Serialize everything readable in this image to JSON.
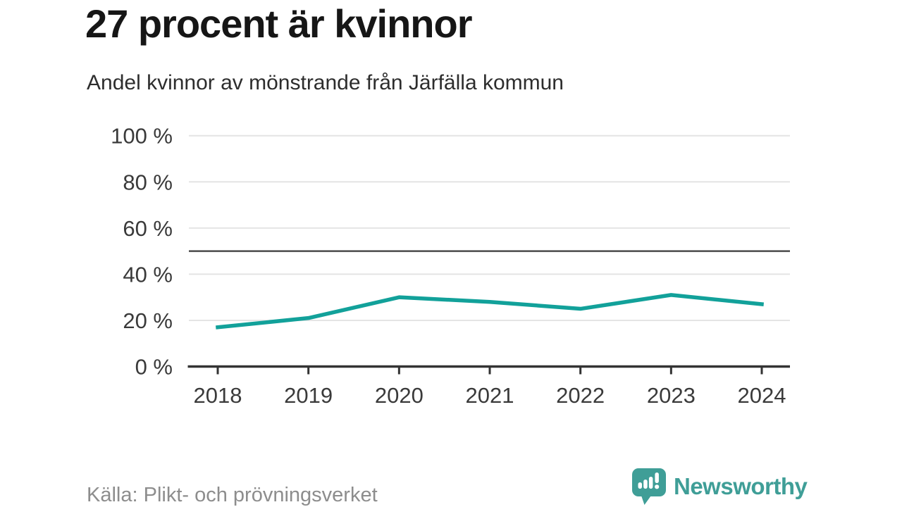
{
  "header": {
    "title": "27 procent är kvinnor",
    "subtitle": "Andel kvinnor av mönstrande från Järfälla kommun"
  },
  "chart_data": {
    "type": "line",
    "title": "Andel kvinnor av mönstrande från Järfälla kommun",
    "categories": [
      "2018",
      "2019",
      "2020",
      "2021",
      "2022",
      "2023",
      "2024"
    ],
    "series": [
      {
        "name": "Andel kvinnor (%)",
        "values": [
          17,
          21,
          30,
          28,
          25,
          31,
          27
        ]
      }
    ],
    "xlabel": "",
    "ylabel": "",
    "ylim": [
      0,
      100
    ],
    "yticks": [
      0,
      20,
      40,
      60,
      80,
      100
    ],
    "ytick_labels": [
      "0 %",
      "20 %",
      "40 %",
      "60 %",
      "80 %",
      "100 %"
    ],
    "reference_line": 50,
    "grid": true,
    "legend_position": "none",
    "line_color": "#12a19a"
  },
  "footer": {
    "source": "Källa: Plikt- och prövningsverket",
    "brand": "Newsworthy"
  },
  "colors": {
    "accent": "#12a19a",
    "brand": "#3f9e97",
    "title": "#161616",
    "subtitle": "#2d2d2d",
    "axis_label": "#3a3a3a",
    "source": "#8d8d8d",
    "gridline": "#e4e4e4",
    "reference_line": "#4b4b4b",
    "axis_line": "#333333"
  }
}
